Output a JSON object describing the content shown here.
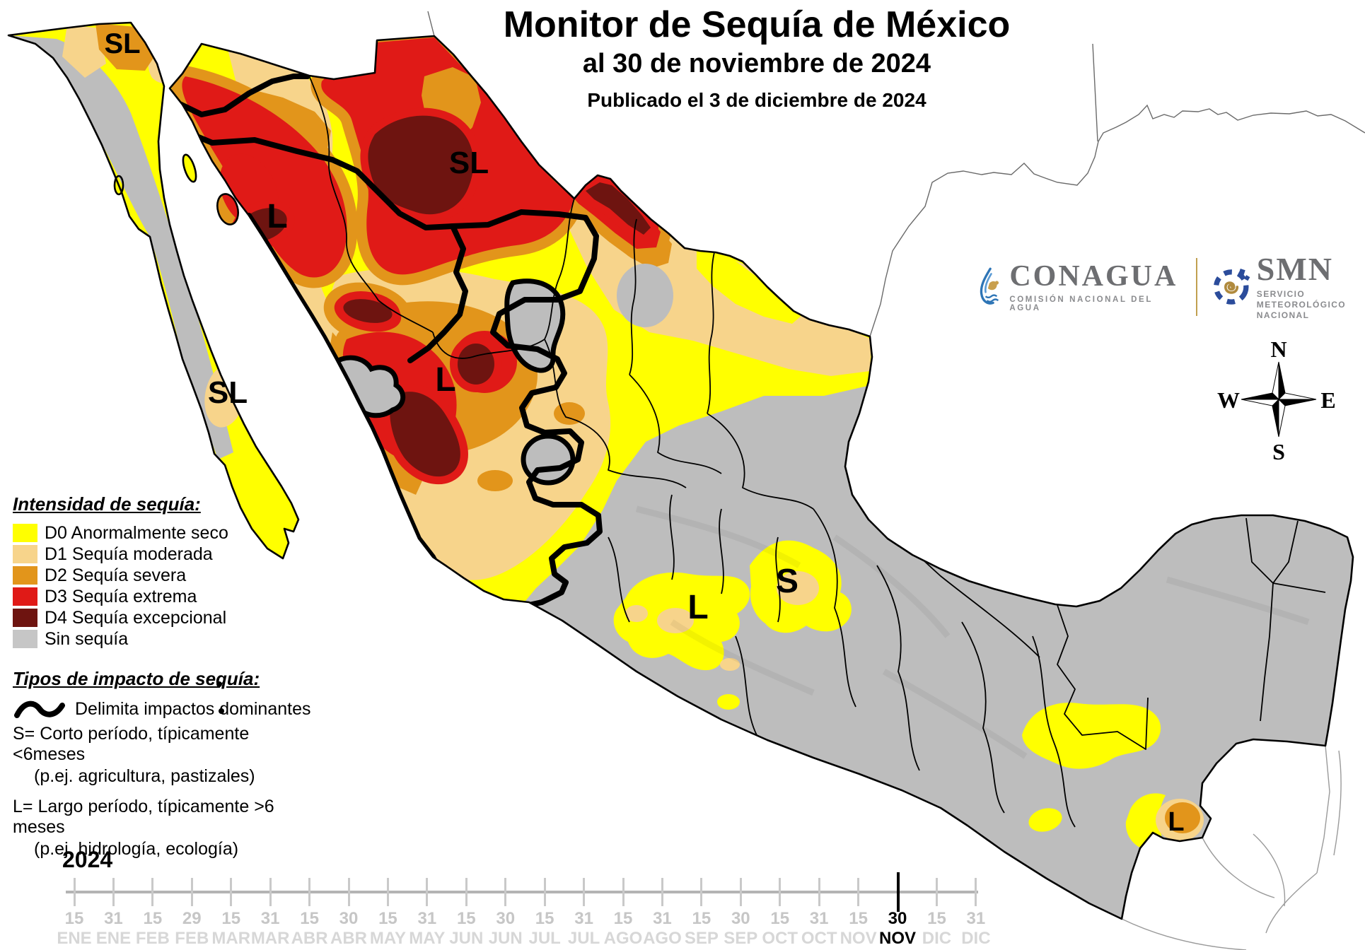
{
  "title": {
    "main": "Monitor de Sequía de México",
    "subtitle": "al 30 de noviembre de 2024",
    "published": "Publicado el 3 de diciembre de 2024"
  },
  "legend": {
    "intensity_title": "Intensidad de sequía:",
    "items": [
      {
        "code": "D0",
        "label": "D0 Anormalmente seco",
        "color": "#FFFF00"
      },
      {
        "code": "D1",
        "label": "D1 Sequía moderada",
        "color": "#F7D48B"
      },
      {
        "code": "D2",
        "label": "D2 Sequía severa",
        "color": "#E2951B"
      },
      {
        "code": "D3",
        "label": "D3 Sequía extrema",
        "color": "#E01A17"
      },
      {
        "code": "D4",
        "label": "D4 Sequía excepcional",
        "color": "#6E1410"
      },
      {
        "code": "SIN",
        "label": "Sin sequía",
        "color": "#C6C6C6"
      }
    ],
    "impact_title": "Tipos de impacto de sequía:",
    "impact_lines": [
      {
        "text": "Delimita impactos dominantes",
        "squiggle": true,
        "indent": false,
        "gap": false
      },
      {
        "text": "S= Corto período, típicamente <6meses",
        "squiggle": false,
        "indent": false,
        "gap": false
      },
      {
        "text": "(p.ej. agricultura, pastizales)",
        "squiggle": false,
        "indent": true,
        "gap": false
      },
      {
        "text": "L= Largo período, típicamente >6 meses",
        "squiggle": false,
        "indent": false,
        "gap": true
      },
      {
        "text": "(p.ej. hidrología, ecología)",
        "squiggle": false,
        "indent": true,
        "gap": false
      }
    ]
  },
  "map": {
    "labels": [
      {
        "id": "sl-sonora-border",
        "text": "SL"
      },
      {
        "id": "sl-chihuahua",
        "text": "SL"
      },
      {
        "id": "l-sonora",
        "text": "L"
      },
      {
        "id": "l-durango",
        "text": "L"
      },
      {
        "id": "sl-baja-sur",
        "text": "SL"
      },
      {
        "id": "l-centro",
        "text": "L"
      },
      {
        "id": "s-centro",
        "text": "S"
      },
      {
        "id": "l-chiapas",
        "text": "L"
      }
    ],
    "colors": {
      "no_drought": "#BDBDBD",
      "d0": "#FFFF00",
      "d1": "#F7D48B",
      "d2": "#E2951B",
      "d3": "#E01A17",
      "d4": "#6E1410",
      "impact_line": "#000000",
      "ocean": "#FFFFFF"
    }
  },
  "compass": {
    "n": "N",
    "e": "E",
    "s": "S",
    "w": "W"
  },
  "logos": {
    "conagua_name": "CONAGUA",
    "conagua_tagline": "COMISIÓN NACIONAL DEL AGUA",
    "smn_name": "SMN",
    "smn_tagline_1": "SERVICIO",
    "smn_tagline_2": "METEOROLÓGICO",
    "smn_tagline_3": "NACIONAL"
  },
  "timeline": {
    "year": "2024",
    "ticks": [
      {
        "day": "15",
        "month": "ENE",
        "current": false
      },
      {
        "day": "31",
        "month": "ENE",
        "current": false
      },
      {
        "day": "15",
        "month": "FEB",
        "current": false
      },
      {
        "day": "29",
        "month": "FEB",
        "current": false
      },
      {
        "day": "15",
        "month": "MAR",
        "current": false
      },
      {
        "day": "31",
        "month": "MAR",
        "current": false
      },
      {
        "day": "15",
        "month": "ABR",
        "current": false
      },
      {
        "day": "30",
        "month": "ABR",
        "current": false
      },
      {
        "day": "15",
        "month": "MAY",
        "current": false
      },
      {
        "day": "31",
        "month": "MAY",
        "current": false
      },
      {
        "day": "15",
        "month": "JUN",
        "current": false
      },
      {
        "day": "30",
        "month": "JUN",
        "current": false
      },
      {
        "day": "15",
        "month": "JUL",
        "current": false
      },
      {
        "day": "31",
        "month": "JUL",
        "current": false
      },
      {
        "day": "15",
        "month": "AGO",
        "current": false
      },
      {
        "day": "31",
        "month": "AGO",
        "current": false
      },
      {
        "day": "15",
        "month": "SEP",
        "current": false
      },
      {
        "day": "30",
        "month": "SEP",
        "current": false
      },
      {
        "day": "15",
        "month": "OCT",
        "current": false
      },
      {
        "day": "31",
        "month": "OCT",
        "current": false
      },
      {
        "day": "15",
        "month": "NOV",
        "current": false
      },
      {
        "day": "30",
        "month": "NOV",
        "current": true
      },
      {
        "day": "15",
        "month": "DIC",
        "current": false
      },
      {
        "day": "31",
        "month": "DIC",
        "current": false
      }
    ]
  }
}
